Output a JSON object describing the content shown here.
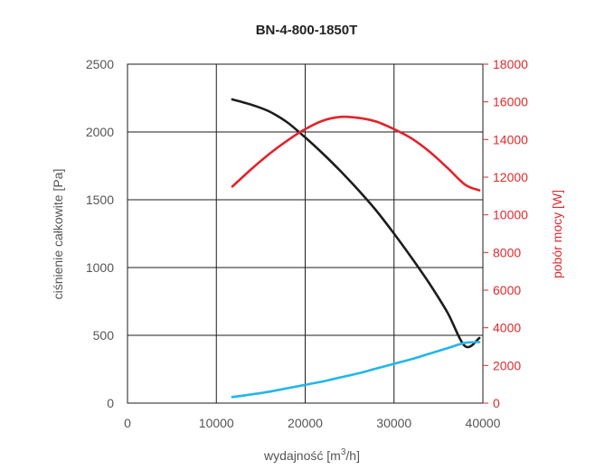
{
  "chart_data": {
    "type": "line",
    "title": "BN-4-800-1850T",
    "xlabel": "wydajność [m³/h]",
    "xlabel_base": "wydajność [m",
    "xlabel_sup": "3",
    "xlabel_end": "/h]",
    "ylabel": "ciśnienie całkowite [Pa]",
    "ylabel_right": "pobór mocy [W]",
    "xlim": [
      0,
      40000
    ],
    "ylim": [
      0,
      2500
    ],
    "ylim_right": [
      0,
      18000
    ],
    "x_ticks": [
      "0",
      "10000",
      "20000",
      "30000",
      "40000"
    ],
    "y_ticks": [
      "0",
      "500",
      "1000",
      "1500",
      "2000",
      "2500"
    ],
    "y_ticks_right": [
      "0",
      "2000",
      "4000",
      "6000",
      "8000",
      "10000",
      "12000",
      "14000",
      "16000",
      "18000"
    ],
    "grid": true,
    "series": [
      {
        "axis": "left",
        "color": "#1d1d1b",
        "x": [
          11800,
          14000,
          16000,
          18000,
          20000,
          22000,
          24000,
          26000,
          28000,
          30000,
          32000,
          34000,
          36000,
          38000,
          39600
        ],
        "values": [
          2240,
          2200,
          2150,
          2070,
          1960,
          1840,
          1710,
          1570,
          1420,
          1250,
          1070,
          880,
          670,
          420,
          480
        ]
      },
      {
        "axis": "right",
        "color": "#e3232a",
        "x": [
          11800,
          14000,
          16000,
          18000,
          20000,
          22000,
          24000,
          26000,
          28000,
          30000,
          32000,
          34000,
          36000,
          38000,
          39600
        ],
        "values": [
          11500,
          12450,
          13250,
          13950,
          14550,
          15000,
          15200,
          15150,
          14950,
          14550,
          14050,
          13350,
          12500,
          11600,
          11300
        ]
      },
      {
        "axis": "left",
        "color": "#22b6e9",
        "x": [
          11800,
          14000,
          16000,
          18000,
          20000,
          22000,
          24000,
          26000,
          28000,
          30000,
          32000,
          34000,
          36000,
          38000,
          39600
        ],
        "values": [
          45,
          65,
          85,
          110,
          135,
          160,
          190,
          220,
          255,
          290,
          325,
          365,
          405,
          445,
          450
        ]
      }
    ]
  }
}
